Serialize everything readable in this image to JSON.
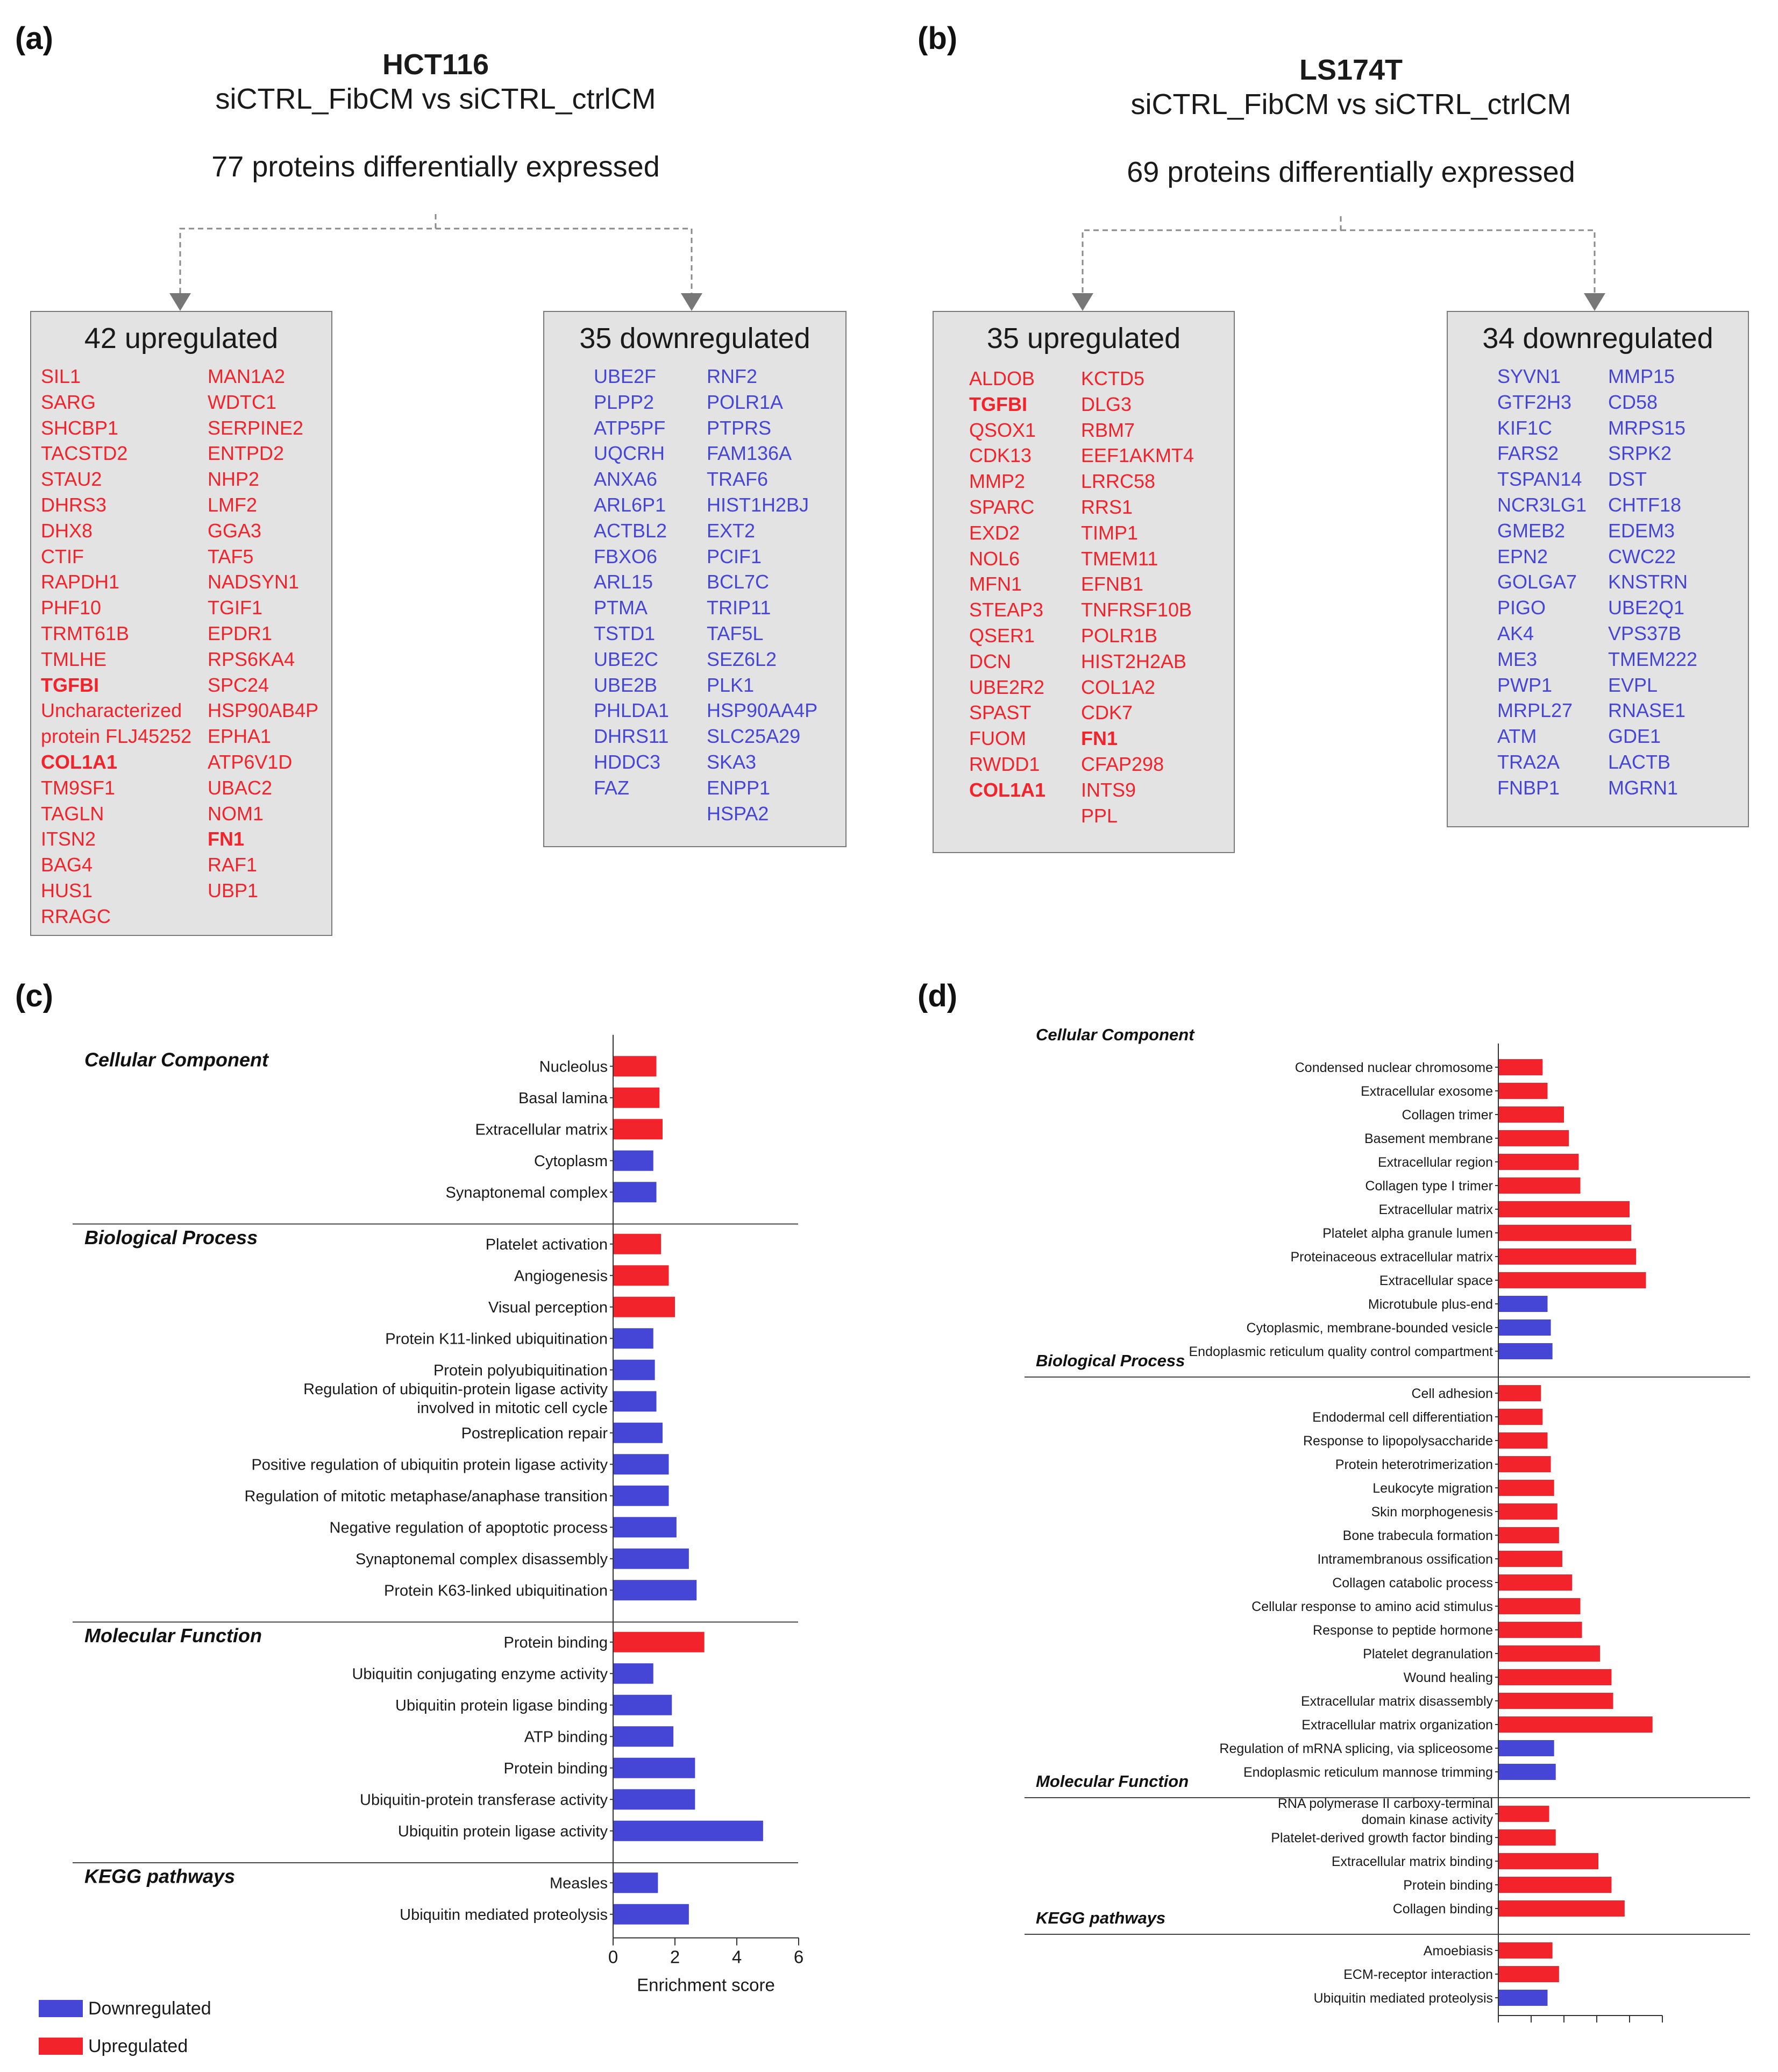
{
  "colors": {
    "up": "#f2232a",
    "down": "#4646d6",
    "box": "#e3e3e3"
  },
  "panel_a": {
    "letter": "(a)",
    "cell_line": "HCT116",
    "comparison": "siCTRL_FibCM vs siCTRL_ctrlCM",
    "count": "77 proteins differentially expressed",
    "up_title": "42 upregulated",
    "down_title": "35 downregulated",
    "up_col1": [
      "SIL1",
      "SARG",
      "SHCBP1",
      "TACSTD2",
      "STAU2",
      "DHRS3",
      "DHX8",
      "CTIF",
      "RAPDH1",
      "PHF10",
      "TRMT61B",
      "TMLHE",
      "TGFBI",
      "Uncharacterized",
      "protein FLJ45252",
      "COL1A1",
      "TM9SF1",
      "TAGLN",
      "ITSN2",
      "BAG4",
      "HUS1",
      "RRAGC"
    ],
    "up_col2": [
      "MAN1A2",
      "WDTC1",
      "SERPINE2",
      "ENTPD2",
      "NHP2",
      "LMF2",
      "GGA3",
      "TAF5",
      "NADSYN1",
      "TGIF1",
      "EPDR1",
      "RPS6KA4",
      "SPC24",
      "HSP90AB4P",
      "EPHA1",
      "ATP6V1D",
      "UBAC2",
      "NOM1",
      "FN1",
      "RAF1",
      "UBP1"
    ],
    "down_col1": [
      "UBE2F",
      "PLPP2",
      "ATP5PF",
      "UQCRH",
      "ANXA6",
      "ARL6P1",
      "ACTBL2",
      "FBXO6",
      "ARL15",
      "PTMA",
      "TSTD1",
      "UBE2C",
      "UBE2B",
      "PHLDA1",
      "DHRS11",
      "HDDC3",
      "FAZ"
    ],
    "down_col2": [
      "RNF2",
      "POLR1A",
      "PTPRS",
      "FAM136A",
      "TRAF6",
      "HIST1H2BJ",
      "EXT2",
      "PCIF1",
      "BCL7C",
      "TRIP11",
      "TAF5L",
      "SEZ6L2",
      "PLK1",
      "HSP90AA4P",
      "SLC25A29",
      "SKA3",
      "ENPP1",
      "HSPA2"
    ]
  },
  "panel_b": {
    "letter": "(b)",
    "cell_line": "LS174T",
    "comparison": "siCTRL_FibCM vs siCTRL_ctrlCM",
    "count": "69 proteins differentially expressed",
    "up_title": "35 upregulated",
    "down_title": "34 downregulated",
    "up_col1": [
      "ALDOB",
      "TGFBI",
      "QSOX1",
      "CDK13",
      "MMP2",
      "SPARC",
      "EXD2",
      "NOL6",
      "MFN1",
      "STEAP3",
      "QSER1",
      "DCN",
      "UBE2R2",
      "SPAST",
      "FUOM",
      "RWDD1",
      "COL1A1"
    ],
    "up_col2": [
      "KCTD5",
      "DLG3",
      "RBM7",
      "EEF1AKMT4",
      "LRRC58",
      "RRS1",
      "TIMP1",
      "TMEM11",
      "EFNB1",
      "TNFRSF10B",
      "POLR1B",
      "HIST2H2AB",
      "COL1A2",
      "CDK7",
      "FN1",
      "CFAP298",
      "INTS9",
      "PPL"
    ],
    "down_col1": [
      "SYVN1",
      "GTF2H3",
      "KIF1C",
      "FARS2",
      "TSPAN14",
      "NCR3LG1",
      "GMEB2",
      "EPN2",
      "GOLGA7",
      "PIGO",
      "AK4",
      "ME3",
      "PWP1",
      "MRPL27",
      "ATM",
      "TRA2A",
      "FNBP1"
    ],
    "down_col2": [
      "MMP15",
      "CD58",
      "MRPS15",
      "SRPK2",
      "DST",
      "CHTF18",
      "EDEM3",
      "CWC22",
      "KNSTRN",
      "UBE2Q1",
      "VPS37B",
      "TMEM222",
      "EVPL",
      "RNASE1",
      "GDE1",
      "LACTB",
      "MGRN1"
    ]
  },
  "panel_c": {
    "letter": "(c)"
  },
  "panel_d": {
    "letter": "(d)"
  },
  "legend": {
    "down": "Downregulated",
    "up": "Upregulated"
  },
  "chart_data": [
    {
      "type": "bar",
      "orientation": "horizontal",
      "panel": "(c)",
      "xlabel": "Enrichment score",
      "xlim": [
        0,
        6
      ],
      "xticks": [
        0,
        2,
        4,
        6
      ],
      "groups": [
        {
          "name": "Cellular Component",
          "items": [
            {
              "label": "Nucleolus",
              "value": 1.4,
              "dir": "up"
            },
            {
              "label": "Basal lamina",
              "value": 1.5,
              "dir": "up"
            },
            {
              "label": "Extracellular matrix",
              "value": 1.6,
              "dir": "up"
            },
            {
              "label": "Cytoplasm",
              "value": 1.3,
              "dir": "down"
            },
            {
              "label": "Synaptonemal complex",
              "value": 1.4,
              "dir": "down"
            }
          ]
        },
        {
          "name": "Biological Process",
          "items": [
            {
              "label": "Platelet activation",
              "value": 1.55,
              "dir": "up"
            },
            {
              "label": "Angiogenesis",
              "value": 1.8,
              "dir": "up"
            },
            {
              "label": "Visual perception",
              "value": 2.0,
              "dir": "up"
            },
            {
              "label": "Protein K11-linked ubiquitination",
              "value": 1.3,
              "dir": "down"
            },
            {
              "label": "Protein polyubiquitination",
              "value": 1.35,
              "dir": "down"
            },
            {
              "label": "Regulation of ubiquitin-protein ligase activity involved in mitotic cell cycle",
              "line1": "Regulation of ubiquitin-protein ligase activity",
              "line2": "involved in mitotic cell cycle",
              "value": 1.4,
              "dir": "down"
            },
            {
              "label": "Postreplication repair",
              "value": 1.6,
              "dir": "down"
            },
            {
              "label": "Positive regulation of ubiquitin protein ligase activity",
              "value": 1.8,
              "dir": "down"
            },
            {
              "label": "Regulation of mitotic metaphase/anaphase transition",
              "value": 1.8,
              "dir": "down"
            },
            {
              "label": "Negative regulation of apoptotic process",
              "value": 2.05,
              "dir": "down"
            },
            {
              "label": "Synaptonemal complex disassembly",
              "value": 2.45,
              "dir": "down"
            },
            {
              "label": "Protein K63-linked ubiquitination",
              "value": 2.7,
              "dir": "down"
            }
          ]
        },
        {
          "name": "Molecular Function",
          "items": [
            {
              "label": "Protein binding",
              "value": 2.95,
              "dir": "up"
            },
            {
              "label": "Ubiquitin conjugating enzyme activity",
              "value": 1.3,
              "dir": "down"
            },
            {
              "label": "Ubiquitin protein ligase binding",
              "value": 1.9,
              "dir": "down"
            },
            {
              "label": "ATP binding",
              "value": 1.95,
              "dir": "down"
            },
            {
              "label": "Protein binding",
              "value": 2.65,
              "dir": "down"
            },
            {
              "label": "Ubiquitin-protein transferase activity",
              "value": 2.65,
              "dir": "down"
            },
            {
              "label": "Ubiquitin protein ligase activity",
              "value": 4.85,
              "dir": "down"
            }
          ]
        },
        {
          "name": "KEGG pathways",
          "items": [
            {
              "label": "Measles",
              "value": 1.45,
              "dir": "down"
            },
            {
              "label": "Ubiquitin mediated proteolysis",
              "value": 2.45,
              "dir": "down"
            }
          ]
        }
      ]
    },
    {
      "type": "bar",
      "orientation": "horizontal",
      "panel": "(d)",
      "xlabel": "",
      "xlim": [
        0,
        5
      ],
      "xticks": [
        0,
        1,
        2,
        3,
        4,
        5
      ],
      "groups": [
        {
          "name": "Cellular Component",
          "items": [
            {
              "label": "Condensed nuclear chromosome",
              "value": 1.35,
              "dir": "up"
            },
            {
              "label": "Extracellular exosome",
              "value": 1.5,
              "dir": "up"
            },
            {
              "label": "Collagen trimer",
              "value": 2.0,
              "dir": "up"
            },
            {
              "label": "Basement membrane",
              "value": 2.15,
              "dir": "up"
            },
            {
              "label": "Extracellular region",
              "value": 2.45,
              "dir": "up"
            },
            {
              "label": "Collagen type I trimer",
              "value": 2.5,
              "dir": "up"
            },
            {
              "label": "Extracellular matrix",
              "value": 4.0,
              "dir": "up"
            },
            {
              "label": "Platelet alpha granule lumen",
              "value": 4.05,
              "dir": "up"
            },
            {
              "label": "Proteinaceous extracellular matrix",
              "value": 4.2,
              "dir": "up"
            },
            {
              "label": "Extracellular space",
              "value": 4.5,
              "dir": "up"
            },
            {
              "label": "Microtubule plus-end",
              "value": 1.5,
              "dir": "down"
            },
            {
              "label": "Cytoplasmic, membrane-bounded vesicle",
              "value": 1.6,
              "dir": "down"
            },
            {
              "label": "Endoplasmic reticulum quality control compartment",
              "value": 1.65,
              "dir": "down"
            }
          ]
        },
        {
          "name": "Biological Process",
          "items": [
            {
              "label": "Cell adhesion",
              "value": 1.3,
              "dir": "up"
            },
            {
              "label": "Endodermal cell differentiation",
              "value": 1.35,
              "dir": "up"
            },
            {
              "label": "Response to lipopolysaccharide",
              "value": 1.5,
              "dir": "up"
            },
            {
              "label": "Protein heterotrimerization",
              "value": 1.6,
              "dir": "up"
            },
            {
              "label": "Leukocyte migration",
              "value": 1.7,
              "dir": "up"
            },
            {
              "label": "Skin morphogenesis",
              "value": 1.8,
              "dir": "up"
            },
            {
              "label": "Bone trabecula formation",
              "value": 1.85,
              "dir": "up"
            },
            {
              "label": "Intramembranous ossification",
              "value": 1.95,
              "dir": "up"
            },
            {
              "label": "Collagen catabolic process",
              "value": 2.25,
              "dir": "up"
            },
            {
              "label": "Cellular response to amino acid stimulus",
              "value": 2.5,
              "dir": "up"
            },
            {
              "label": "Response to peptide hormone",
              "value": 2.55,
              "dir": "up"
            },
            {
              "label": "Platelet degranulation",
              "value": 3.1,
              "dir": "up"
            },
            {
              "label": "Wound healing",
              "value": 3.45,
              "dir": "up"
            },
            {
              "label": "Extracellular matrix disassembly",
              "value": 3.5,
              "dir": "up"
            },
            {
              "label": "Extracellular matrix organization",
              "value": 4.7,
              "dir": "up"
            },
            {
              "label": "Regulation of mRNA splicing, via spliceosome",
              "value": 1.7,
              "dir": "down"
            },
            {
              "label": "Endoplasmic reticulum mannose trimming",
              "value": 1.75,
              "dir": "down"
            }
          ]
        },
        {
          "name": "Molecular Function",
          "items": [
            {
              "label": "RNA polymerase II carboxy-terminal domain kinase activity",
              "line1": "RNA polymerase II carboxy-terminal",
              "line2": "domain kinase activity",
              "value": 1.55,
              "dir": "up"
            },
            {
              "label": "Platelet-derived growth factor binding",
              "value": 1.75,
              "dir": "up"
            },
            {
              "label": "Extracellular matrix binding",
              "value": 3.05,
              "dir": "up"
            },
            {
              "label": "Protein binding",
              "value": 3.45,
              "dir": "up"
            },
            {
              "label": "Collagen binding",
              "value": 3.85,
              "dir": "up"
            }
          ]
        },
        {
          "name": "KEGG pathways",
          "items": [
            {
              "label": "Amoebiasis",
              "value": 1.65,
              "dir": "up"
            },
            {
              "label": "ECM-receptor interaction",
              "value": 1.85,
              "dir": "up"
            },
            {
              "label": "Ubiquitin mediated proteolysis",
              "value": 1.5,
              "dir": "down"
            }
          ]
        }
      ]
    }
  ]
}
